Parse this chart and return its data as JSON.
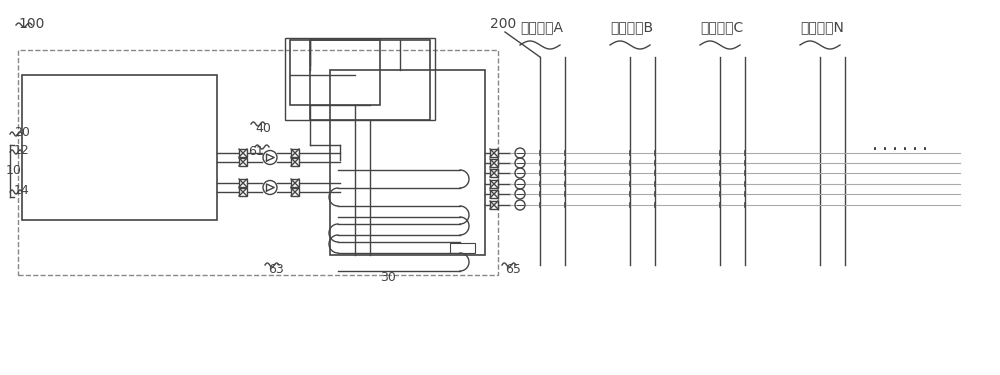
{
  "bg_color": "#ffffff",
  "line_color": "#444444",
  "dashed_color": "#888888",
  "light_gray": "#aaaaaa",
  "label_100": "100",
  "label_200": "200",
  "label_40": "40",
  "label_61": "61",
  "label_63": "63",
  "label_30": "30",
  "label_65": "65",
  "label_20": "20",
  "label_10": "10",
  "label_12": "12",
  "label_14": "14",
  "zone_labels": [
    "空调区域A",
    "空调区域B",
    "空调区域C",
    "空调区域N"
  ],
  "dots_label": "......",
  "font_size_label": 9,
  "font_size_zone": 10
}
